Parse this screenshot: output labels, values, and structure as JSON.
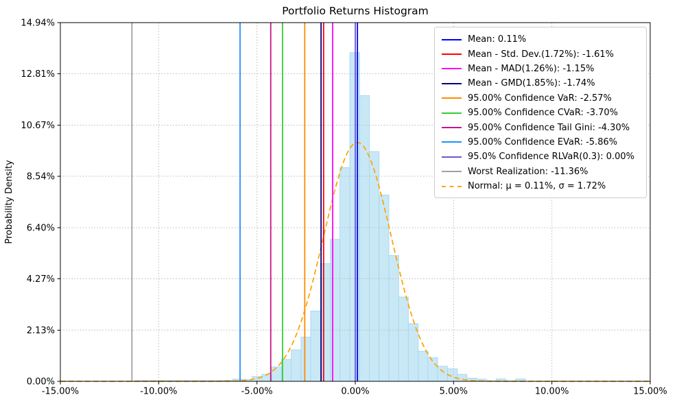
{
  "chart_data": {
    "type": "histogram",
    "title": "Portfolio Returns Histogram",
    "ylabel": "Probability Density",
    "xlabel": "",
    "x_ticks": [
      "-15.00%",
      "-10.00%",
      "-5.00%",
      "0.00%",
      "5.00%",
      "10.00%",
      "15.00%"
    ],
    "x_tick_values": [
      -15,
      -10,
      -5,
      0,
      5,
      10,
      15
    ],
    "y_ticks": [
      "0.00%",
      "2.13%",
      "4.27%",
      "6.40%",
      "8.54%",
      "10.67%",
      "12.81%",
      "14.94%"
    ],
    "y_tick_values": [
      0,
      2.13,
      4.27,
      6.4,
      8.54,
      10.67,
      12.81,
      14.94
    ],
    "xlim": [
      -15,
      15
    ],
    "ylim": [
      0,
      14.94
    ],
    "grid": "dotted",
    "grid_color": "#b8b8b8",
    "bar_fill": "#c9e8f6",
    "bar_edge": "#a5d7ee",
    "bin_width_pct": 0.497,
    "bins": [
      {
        "center": -10.96,
        "h": 0.03
      },
      {
        "center": -10.46,
        "h": 0.03
      },
      {
        "center": -9.96,
        "h": 0.03
      },
      {
        "center": -9.47,
        "h": 0.03
      },
      {
        "center": -8.97,
        "h": 0.03
      },
      {
        "center": -8.47,
        "h": 0.03
      },
      {
        "center": -7.98,
        "h": 0.03
      },
      {
        "center": -7.48,
        "h": 0.03
      },
      {
        "center": -6.98,
        "h": 0.03
      },
      {
        "center": -6.49,
        "h": 0.04
      },
      {
        "center": -5.99,
        "h": 0.09
      },
      {
        "center": -5.49,
        "h": 0.08
      },
      {
        "center": -5.0,
        "h": 0.2
      },
      {
        "center": -4.5,
        "h": 0.29
      },
      {
        "center": -4.0,
        "h": 0.6
      },
      {
        "center": -3.51,
        "h": 0.91
      },
      {
        "center": -3.01,
        "h": 1.31
      },
      {
        "center": -2.51,
        "h": 1.84
      },
      {
        "center": -2.02,
        "h": 2.93
      },
      {
        "center": -1.52,
        "h": 4.9
      },
      {
        "center": -1.02,
        "h": 5.91
      },
      {
        "center": -0.53,
        "h": 8.9
      },
      {
        "center": -0.03,
        "h": 13.69
      },
      {
        "center": 0.47,
        "h": 11.9
      },
      {
        "center": 0.96,
        "h": 9.57
      },
      {
        "center": 1.46,
        "h": 7.76
      },
      {
        "center": 1.96,
        "h": 5.24
      },
      {
        "center": 2.45,
        "h": 3.51
      },
      {
        "center": 2.95,
        "h": 2.4
      },
      {
        "center": 3.45,
        "h": 1.25
      },
      {
        "center": 3.94,
        "h": 0.98
      },
      {
        "center": 4.44,
        "h": 0.63
      },
      {
        "center": 4.94,
        "h": 0.52
      },
      {
        "center": 5.43,
        "h": 0.29
      },
      {
        "center": 5.93,
        "h": 0.13
      },
      {
        "center": 6.43,
        "h": 0.09
      },
      {
        "center": 6.92,
        "h": 0.02
      },
      {
        "center": 7.42,
        "h": 0.1
      },
      {
        "center": 7.92,
        "h": 0.02
      },
      {
        "center": 8.41,
        "h": 0.1
      }
    ],
    "vlines": [
      {
        "name": "mean",
        "label": "Mean: 0.11%",
        "value": 0.11,
        "color": "#0000ff"
      },
      {
        "name": "std-dev",
        "label": "Mean - Std. Dev.(1.72%): -1.61%",
        "value": -1.61,
        "color": "#ff0000"
      },
      {
        "name": "mad",
        "label": "Mean - MAD(1.26%): -1.15%",
        "value": -1.15,
        "color": "#ff00ff"
      },
      {
        "name": "gmd",
        "label": "Mean - GMD(1.85%): -1.74%",
        "value": -1.74,
        "color": "#000080"
      },
      {
        "name": "var",
        "label": "95.00% Confidence VaR: -2.57%",
        "value": -2.57,
        "color": "#ff8c00"
      },
      {
        "name": "cvar",
        "label": "95.00% Confidence CVaR: -3.70%",
        "value": -3.7,
        "color": "#32cd32"
      },
      {
        "name": "tail-gini",
        "label": "95.00% Confidence Tail Gini: -4.30%",
        "value": -4.3,
        "color": "#c71585"
      },
      {
        "name": "evar",
        "label": "95.00% Confidence EVaR: -5.86%",
        "value": -5.86,
        "color": "#1e90ff"
      },
      {
        "name": "rlvar",
        "label": "95.0% Confidence RLVaR(0.3): 0.00%",
        "value": 0.0,
        "color": "#6a5acd"
      },
      {
        "name": "worst",
        "label": "Worst Realization: -11.36%",
        "value": -11.36,
        "color": "#a0a0a0"
      }
    ],
    "normal_curve": {
      "label": "Normal: μ = 0.11%, σ = 1.72%",
      "mu": 0.11,
      "sigma": 1.72,
      "peak_density": 9.95,
      "color": "#ffa500",
      "style": "dashed"
    },
    "legend_position": "upper right"
  }
}
